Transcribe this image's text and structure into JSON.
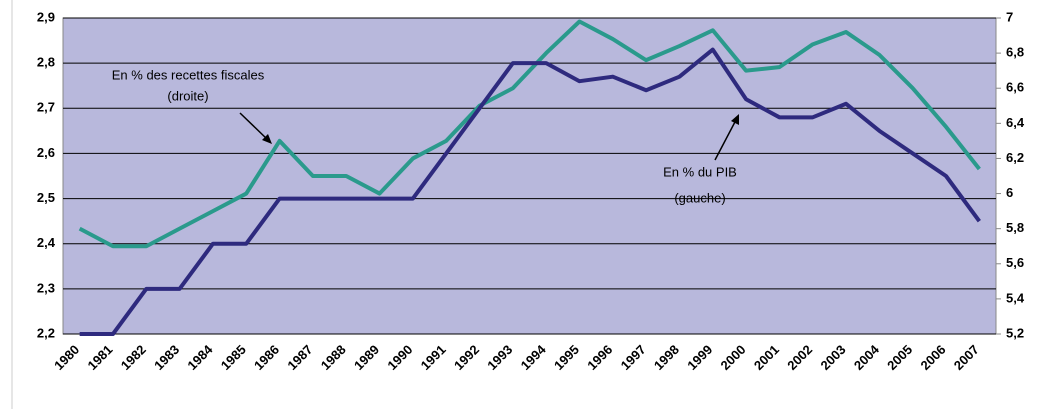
{
  "chart_data": {
    "type": "line",
    "categories": [
      "1980",
      "1981",
      "1982",
      "1983",
      "1984",
      "1985",
      "1986",
      "1987",
      "1988",
      "1989",
      "1990",
      "1991",
      "1992",
      "1993",
      "1994",
      "1995",
      "1996",
      "1997",
      "1998",
      "1999",
      "2000",
      "2001",
      "2002",
      "2003",
      "2004",
      "2005",
      "2006",
      "2007"
    ],
    "series": [
      {
        "color": "#2a9a8c",
        "axis": "y2",
        "values": [
          5.8,
          5.7,
          5.7,
          5.8,
          5.9,
          6.0,
          6.3,
          6.1,
          6.1,
          6.0,
          6.2,
          6.3,
          6.5,
          6.6,
          6.8,
          6.98,
          6.88,
          6.76,
          6.84,
          6.93,
          6.7,
          6.72,
          6.85,
          6.92,
          6.79,
          6.6,
          6.38,
          6.14
        ]
      },
      {
        "color": "#2e2a7e",
        "values": [
          2.2,
          2.2,
          2.3,
          2.3,
          2.4,
          2.4,
          2.5,
          2.5,
          2.5,
          2.5,
          2.5,
          2.6,
          2.7,
          2.8,
          2.8,
          2.76,
          2.77,
          2.74,
          2.77,
          2.83,
          2.72,
          2.68,
          2.68,
          2.71,
          2.65,
          2.6,
          2.55,
          2.45
        ]
      }
    ],
    "ylim": [
      2.2,
      2.9
    ],
    "yticks": [
      {
        "value": 2.2,
        "label": "2,2"
      },
      {
        "value": 2.3,
        "label": "2,3"
      },
      {
        "value": 2.4,
        "label": "2,4"
      },
      {
        "value": 2.5,
        "label": "2,5"
      },
      {
        "value": 2.6,
        "label": "2,6"
      },
      {
        "value": 2.7,
        "label": "2,7"
      },
      {
        "value": 2.8,
        "label": "2,8"
      },
      {
        "value": 2.9,
        "label": "2,9"
      }
    ],
    "y2lim": [
      5.2,
      7
    ],
    "y2ticks": [
      {
        "value": 5.2,
        "label": "5,2"
      },
      {
        "value": 5.4,
        "label": "5,4"
      },
      {
        "value": 5.6,
        "label": "5,6"
      },
      {
        "value": 5.8,
        "label": "5,8"
      },
      {
        "value": 6,
        "label": "6"
      },
      {
        "value": 6.2,
        "label": "6,2"
      },
      {
        "value": 6.4,
        "label": "6,4"
      },
      {
        "value": 6.6,
        "label": "6,6"
      },
      {
        "value": 6.8,
        "label": "6,8"
      },
      7
    ],
    "grid": true,
    "background": "#b8b8dc",
    "annotations": [
      {
        "lines": [
          "En % des recettes fiscales",
          "(droite)"
        ]
      },
      {
        "lines": [
          "En % du PIB",
          "(gauche)"
        ]
      }
    ]
  }
}
